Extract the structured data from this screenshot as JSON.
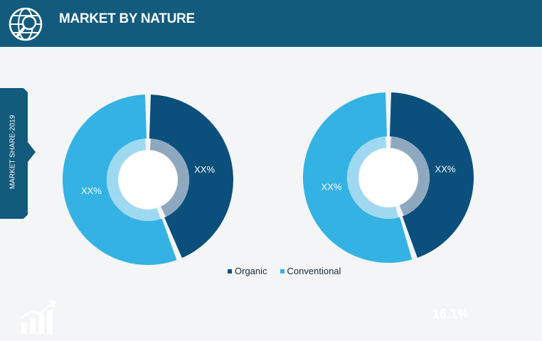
{
  "header": {
    "title": "MARKET BY NATURE",
    "icon": "globe-search-icon"
  },
  "side_tab": {
    "label": "MARKET SHARE-2019"
  },
  "colors": {
    "header": "#135b7d",
    "organic": "#0b4f7c",
    "conventional": "#33b2e3",
    "organic_inner": "#8ea9bf",
    "conventional_inner": "#9fd9f1"
  },
  "chart_data": [
    {
      "type": "pie",
      "categories": [
        "Organic",
        "Conventional"
      ],
      "values": [
        44,
        56
      ],
      "data_labels": [
        "XX%",
        "XX%"
      ]
    },
    {
      "type": "pie",
      "categories": [
        "Organic",
        "Conventional"
      ],
      "values": [
        45,
        55
      ],
      "data_labels": [
        "XX%",
        "XX%"
      ]
    }
  ],
  "legend": {
    "items": [
      {
        "label": "Organic"
      },
      {
        "label": "Conventional"
      }
    ]
  },
  "footer": {
    "growth_icon": "growth-chart-icon",
    "cagr_label": "",
    "cagr_value": "16.1%"
  }
}
